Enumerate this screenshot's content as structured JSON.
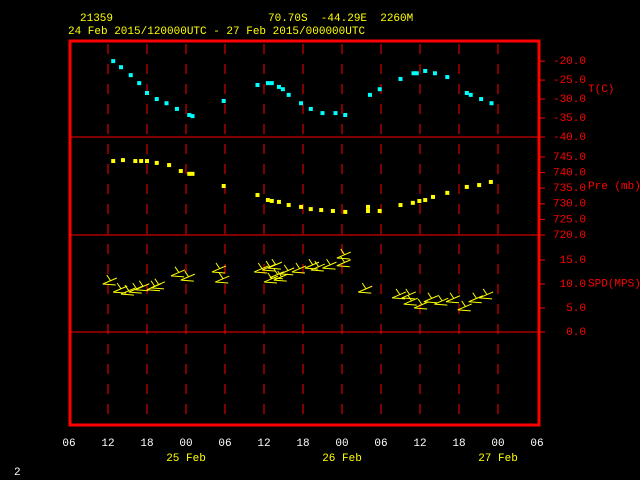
{
  "header": {
    "station": "21359",
    "location": "70.70S  -44.29E  2260M",
    "period": "24 Feb 2015/120000UTC - 27 Feb 2015/000000UTC"
  },
  "page_number": "2",
  "chart_data": [
    {
      "type": "scatter",
      "y_label": "T(C)",
      "color": "#00ffff",
      "x": [
        6.8,
        8,
        9.5,
        10.8,
        12,
        13.5,
        15,
        16.6,
        18.5,
        19,
        23.8,
        29,
        30.6,
        31.2,
        32.3,
        32.9,
        33.8,
        35.7,
        37.2,
        39,
        41,
        42.5,
        46.3,
        47.8,
        51,
        53,
        53.5,
        54.8,
        56.3,
        58.2,
        61.2,
        61.8,
        63.4,
        65
      ],
      "values": [
        -20,
        -21.6,
        -23.7,
        -25.8,
        -28.4,
        -30,
        -31.1,
        -32.6,
        -34.2,
        -34.5,
        -30.5,
        -26.3,
        -25.8,
        -25.8,
        -26.8,
        -27.4,
        -28.9,
        -31.1,
        -32.6,
        -33.7,
        -33.7,
        -34.2,
        -28.9,
        -27.4,
        -24.7,
        -23.2,
        -23.2,
        -22.6,
        -23.2,
        -24.2,
        -28.4,
        -28.9,
        -30,
        -31.1
      ],
      "ylim": [
        -40,
        -14.7
      ],
      "yticks": [
        {
          "value": -20,
          "label": "-20.0"
        },
        {
          "value": -25,
          "label": "-25.0"
        },
        {
          "value": -30,
          "label": "-30.0"
        },
        {
          "value": -35,
          "label": "-35.0"
        },
        {
          "value": -40,
          "label": "-40.0"
        }
      ]
    },
    {
      "type": "scatter",
      "y_label": "Pre (mb)",
      "color": "#ffff00",
      "x": [
        6.8,
        8.3,
        10.2,
        11.1,
        12,
        13.5,
        15.4,
        17.2,
        18.5,
        19,
        23.8,
        29,
        30.6,
        31.2,
        32.3,
        33.8,
        35.7,
        37.2,
        38.8,
        40.6,
        42.5,
        46,
        46,
        47.8,
        51,
        52.9,
        53.9,
        54.8,
        56,
        58.2,
        61.2,
        63.1,
        64.9
      ],
      "values": [
        743.7,
        744,
        743.7,
        743.7,
        743.7,
        743.1,
        742.4,
        740.5,
        739.6,
        739.6,
        735.7,
        732.8,
        731.2,
        730.9,
        730.6,
        729.6,
        729,
        728.3,
        728,
        727.7,
        727.4,
        729,
        727.7,
        727.7,
        729.6,
        730.3,
        730.9,
        731.2,
        732.2,
        733.5,
        735.4,
        736,
        737
      ],
      "ylim": [
        720,
        751.4
      ],
      "yticks": [
        {
          "value": 745,
          "label": "745.0"
        },
        {
          "value": 740,
          "label": "740.0"
        },
        {
          "value": 735,
          "label": "735.0"
        },
        {
          "value": 730,
          "label": "730.0"
        },
        {
          "value": 725,
          "label": "725.0"
        },
        {
          "value": 720,
          "label": "720.0"
        }
      ]
    },
    {
      "type": "barb",
      "y_label": "SPD(MPS)",
      "color": "#ffff00",
      "x": [
        5.2,
        6.8,
        8,
        9.2,
        10.2,
        12,
        12.6,
        15.7,
        17.2,
        22,
        22.5,
        28.5,
        29.7,
        30,
        30.6,
        30.9,
        31.5,
        32.5,
        34.3,
        36.3,
        37.2,
        39,
        41.2,
        41.2,
        44.5,
        49.7,
        51.2,
        51.5,
        53.1,
        54.6,
        56.2,
        58,
        59.8,
        61.5,
        63.1
      ],
      "values": [
        10,
        8.3,
        7.9,
        8.3,
        8.8,
        8.8,
        9.2,
        11.7,
        10.8,
        12.5,
        10.4,
        12.5,
        12.9,
        10.4,
        13.3,
        11.3,
        10.8,
        12.1,
        12.5,
        13.3,
        12.9,
        13.3,
        13.8,
        15.4,
        8.3,
        7.1,
        7.1,
        5.8,
        5,
        6.3,
        5.8,
        6.3,
        4.6,
        6.3,
        7.1
      ],
      "ylim": [
        0,
        20.2
      ],
      "yticks": [
        {
          "value": 15,
          "label": "15.0"
        },
        {
          "value": 10,
          "label": "10.0"
        },
        {
          "value": 5,
          "label": "5.0"
        },
        {
          "value": 0,
          "label": "0.0"
        }
      ],
      "xlim": [
        0,
        72
      ],
      "xticks": [
        {
          "value": 0,
          "label": "06"
        },
        {
          "value": 6,
          "label": "12"
        },
        {
          "value": 12,
          "label": "18"
        },
        {
          "value": 18,
          "label": "00"
        },
        {
          "value": 24,
          "label": "06"
        },
        {
          "value": 30,
          "label": "12"
        },
        {
          "value": 36,
          "label": "18"
        },
        {
          "value": 42,
          "label": "00"
        },
        {
          "value": 48,
          "label": "06"
        },
        {
          "value": 54,
          "label": "12"
        },
        {
          "value": 60,
          "label": "18"
        },
        {
          "value": 66,
          "label": "00"
        },
        {
          "value": 72,
          "label": "06"
        }
      ],
      "date_labels": [
        {
          "value": 18,
          "label": "25 Feb"
        },
        {
          "value": 42,
          "label": "26 Feb"
        },
        {
          "value": 66,
          "label": "27 Feb"
        }
      ]
    }
  ]
}
